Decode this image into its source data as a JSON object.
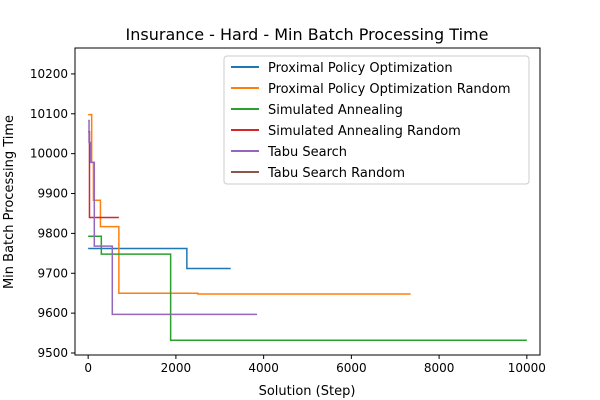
{
  "chart_data": {
    "type": "line",
    "title": "Insurance - Hard - Min Batch Processing Time",
    "xlabel": "Solution (Step)",
    "ylabel": "Min Batch Processing Time",
    "xlim": [
      -300,
      10300
    ],
    "ylim": [
      9495,
      10265
    ],
    "xticks": [
      0,
      2000,
      4000,
      6000,
      8000,
      10000
    ],
    "xtick_labels": [
      "0",
      "2000",
      "4000",
      "6000",
      "8000",
      "10000"
    ],
    "yticks": [
      9500,
      9600,
      9700,
      9800,
      9900,
      10000,
      10100,
      10200
    ],
    "ytick_labels": [
      "9500",
      "9600",
      "9700",
      "9800",
      "9900",
      "10000",
      "10100",
      "10200"
    ],
    "grid": false,
    "legend_position": "top-right",
    "series": [
      {
        "name": "Proximal Policy Optimization",
        "color": "#1f77b4",
        "step": true,
        "points": [
          [
            0,
            9762
          ],
          [
            2250,
            9762
          ],
          [
            2250,
            9712
          ],
          [
            3250,
            9712
          ]
        ]
      },
      {
        "name": "Proximal Policy Optimization Random",
        "color": "#ff7f0e",
        "step": true,
        "points": [
          [
            0,
            10098
          ],
          [
            80,
            10098
          ],
          [
            80,
            9978
          ],
          [
            120,
            9978
          ],
          [
            120,
            9883
          ],
          [
            280,
            9883
          ],
          [
            280,
            9817
          ],
          [
            700,
            9817
          ],
          [
            700,
            9650
          ],
          [
            2500,
            9650
          ],
          [
            2500,
            9648
          ],
          [
            7350,
            9648
          ]
        ]
      },
      {
        "name": "Simulated Annealing",
        "color": "#2ca02c",
        "step": true,
        "points": [
          [
            0,
            9793
          ],
          [
            300,
            9793
          ],
          [
            300,
            9748
          ],
          [
            1880,
            9748
          ],
          [
            1880,
            9532
          ],
          [
            10000,
            9532
          ]
        ]
      },
      {
        "name": "Simulated Annealing Random",
        "color": "#d62728",
        "step": true,
        "points": [
          [
            0,
            10055
          ],
          [
            30,
            10055
          ],
          [
            30,
            9840
          ],
          [
            700,
            9840
          ]
        ]
      },
      {
        "name": "Tabu Search",
        "color": "#9467bd",
        "step": true,
        "points": [
          [
            0,
            10083
          ],
          [
            20,
            10083
          ],
          [
            20,
            10028
          ],
          [
            60,
            10028
          ],
          [
            60,
            9978
          ],
          [
            140,
            9978
          ],
          [
            140,
            9768
          ],
          [
            550,
            9768
          ],
          [
            550,
            9597
          ],
          [
            3850,
            9597
          ]
        ]
      },
      {
        "name": "Tabu Search Random",
        "color": "#8c564b",
        "step": true,
        "points": []
      }
    ]
  }
}
